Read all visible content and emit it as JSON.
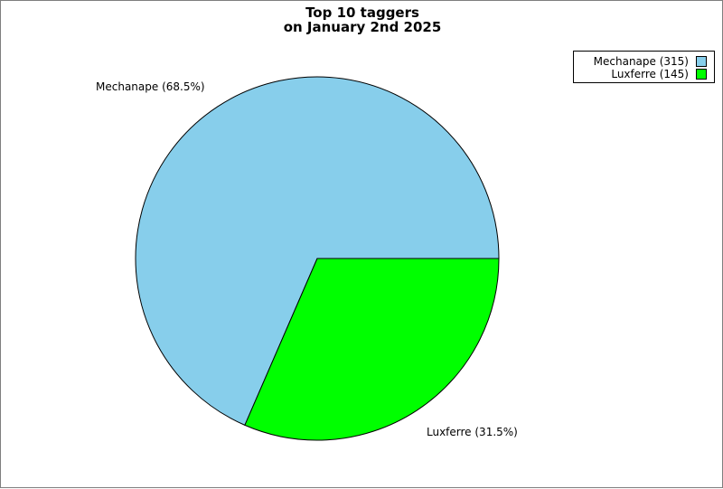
{
  "chart_data": {
    "type": "pie",
    "title_lines": [
      "Top 10 taggers",
      "on January 2nd 2025"
    ],
    "slices": [
      {
        "name": "Mechanape",
        "value": 315,
        "percent": "68.5%",
        "color": "#87ceeb",
        "label": "Mechanape (68.5%)",
        "legend": "Mechanape (315)"
      },
      {
        "name": "Luxferre",
        "value": 145,
        "percent": "31.5%",
        "color": "#00ff00",
        "label": "Luxferre (31.5%)",
        "legend": "Luxferre (145)"
      }
    ],
    "legend_position": "top-right"
  }
}
